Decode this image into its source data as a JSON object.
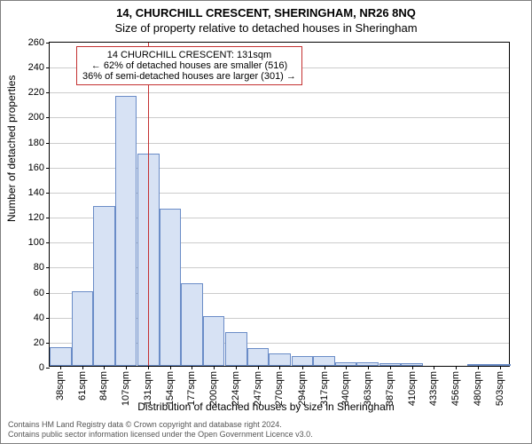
{
  "header": {
    "address": "14, CHURCHILL CRESCENT, SHERINGHAM, NR26 8NQ",
    "subtitle": "Size of property relative to detached houses in Sheringham"
  },
  "chart": {
    "type": "histogram",
    "y_axis_label": "Number of detached properties",
    "x_axis_label": "Distribution of detached houses by size in Sheringham",
    "background_color": "#ffffff",
    "grid_color": "#cccccc",
    "axis_color": "#000000",
    "bar_fill": "#d7e2f4",
    "bar_border": "#6a8cc7",
    "ref_line_color": "#c43131",
    "ref_line_x_value": 131,
    "ylim": [
      0,
      260
    ],
    "ytick_step": 20,
    "x_min": 26.5,
    "x_max": 514.5,
    "x_ticks": [
      38,
      61,
      84,
      107,
      131,
      154,
      177,
      200,
      224,
      247,
      270,
      294,
      317,
      340,
      363,
      387,
      410,
      433,
      456,
      480,
      503
    ],
    "x_tick_suffix": "sqm",
    "bars": [
      {
        "center": 38,
        "value": 15
      },
      {
        "center": 61,
        "value": 60
      },
      {
        "center": 84,
        "value": 128
      },
      {
        "center": 107,
        "value": 216
      },
      {
        "center": 131,
        "value": 170
      },
      {
        "center": 154,
        "value": 126
      },
      {
        "center": 177,
        "value": 66
      },
      {
        "center": 200,
        "value": 40
      },
      {
        "center": 224,
        "value": 27
      },
      {
        "center": 247,
        "value": 14
      },
      {
        "center": 270,
        "value": 10
      },
      {
        "center": 294,
        "value": 8
      },
      {
        "center": 317,
        "value": 8
      },
      {
        "center": 340,
        "value": 3
      },
      {
        "center": 363,
        "value": 3
      },
      {
        "center": 387,
        "value": 2
      },
      {
        "center": 410,
        "value": 2
      },
      {
        "center": 433,
        "value": 0
      },
      {
        "center": 456,
        "value": 0
      },
      {
        "center": 480,
        "value": 1
      },
      {
        "center": 503,
        "value": 1
      }
    ],
    "bar_width_value": 23,
    "label_fontsize": 12,
    "tick_fontsize": 11
  },
  "callout": {
    "border_color": "#c43131",
    "line1": "14 CHURCHILL CRESCENT: 131sqm",
    "line2": "← 62% of detached houses are smaller (516)",
    "line3": "36% of semi-detached houses are larger (301) →"
  },
  "credits": {
    "line1": "Contains HM Land Registry data © Crown copyright and database right 2024.",
    "line2": "Contains public sector information licensed under the Open Government Licence v3.0."
  }
}
